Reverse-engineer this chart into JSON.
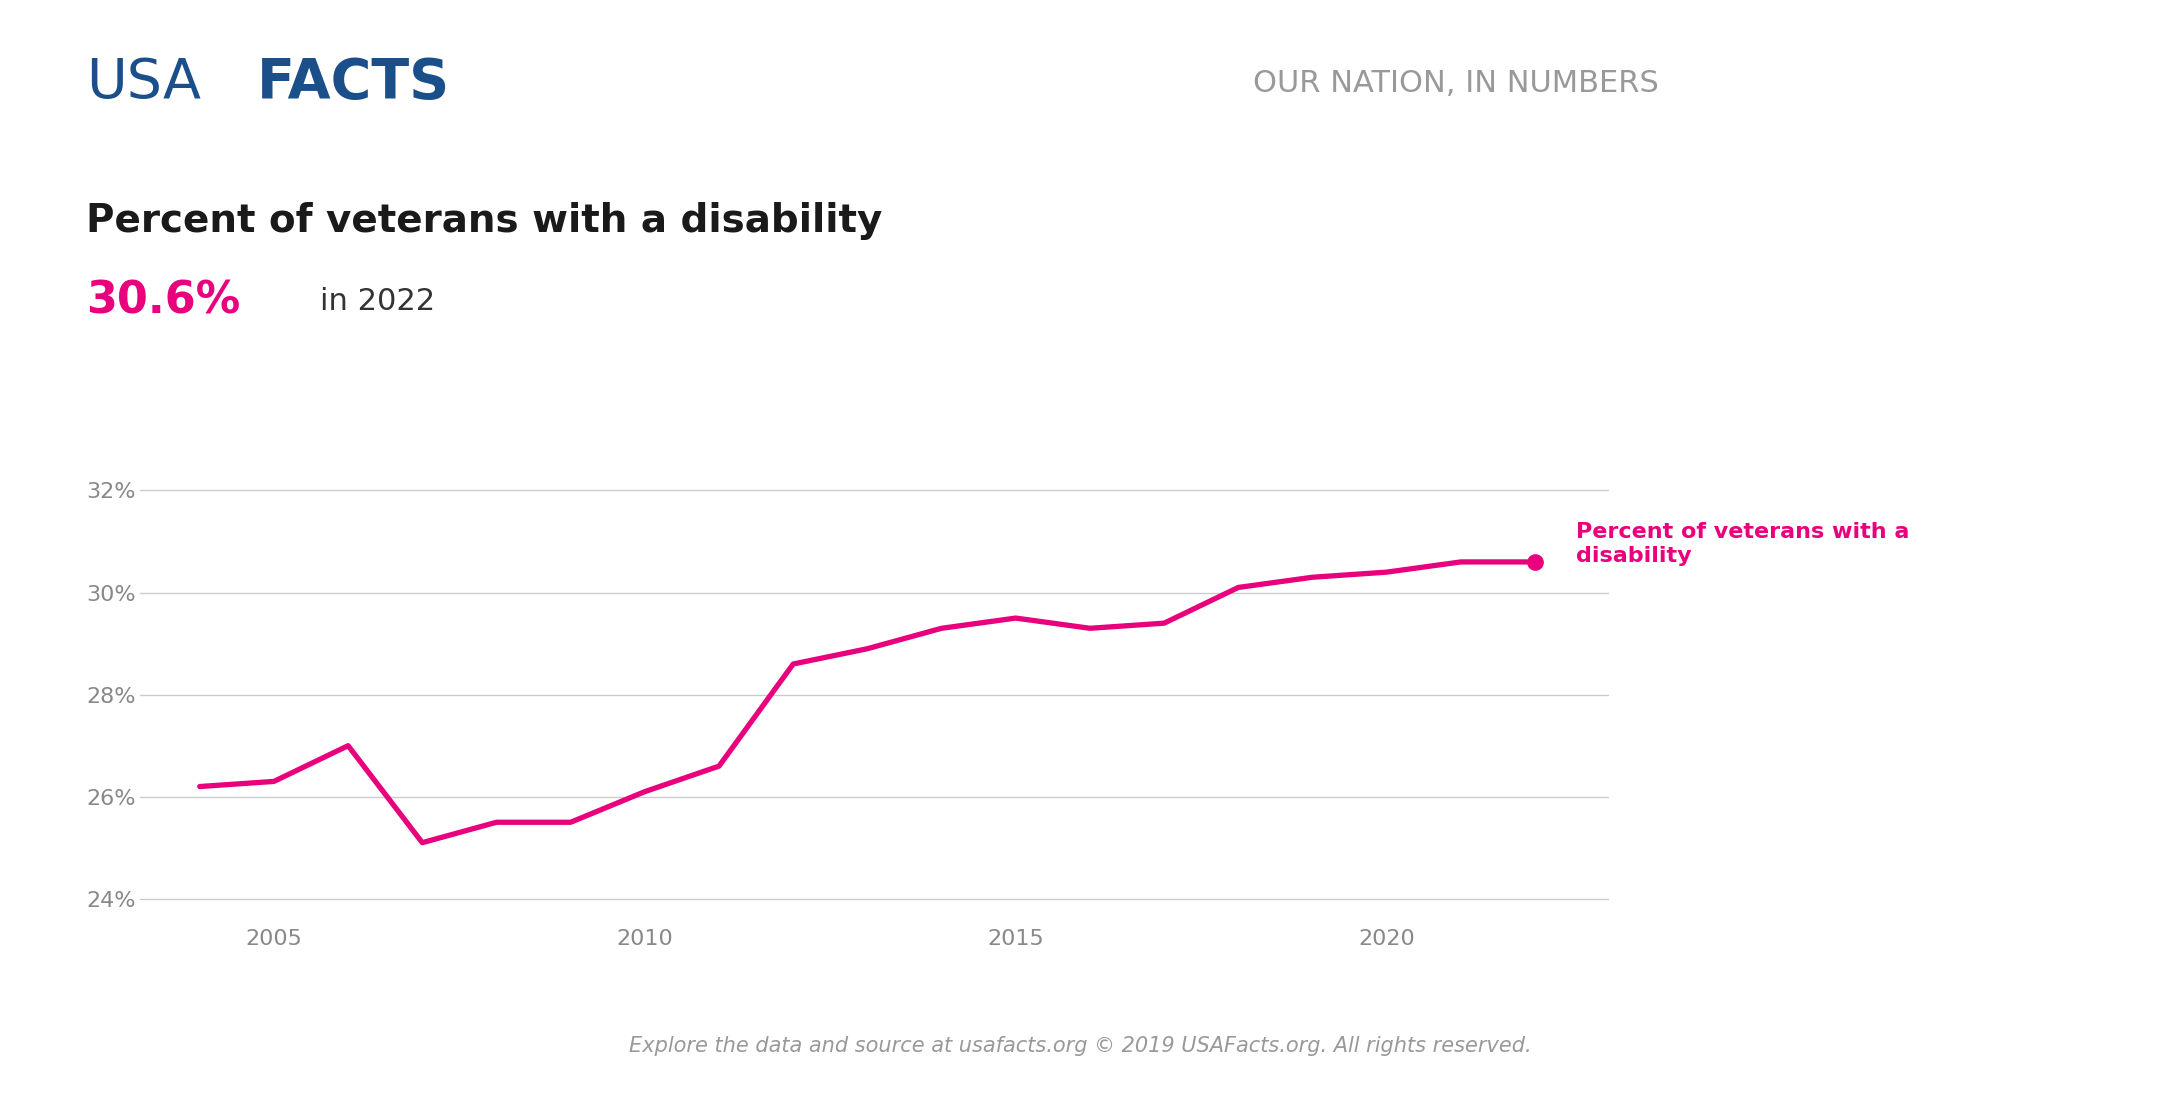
{
  "title": "Percent of veterans with a disability",
  "subtitle_value": "30.6%",
  "subtitle_year": "in 2022",
  "usa_text": "USA",
  "facts_text": "FACTS",
  "nation_label": "OUR NATION, IN NUMBERS",
  "footer": "Explore the data and source at usafacts.org © 2019 USAFacts.org. All rights reserved.",
  "line_color": "#E8007C",
  "line_label": "Percent of veterans with a\ndisability",
  "years": [
    2004,
    2005,
    2006,
    2007,
    2008,
    2009,
    2010,
    2011,
    2012,
    2013,
    2014,
    2015,
    2016,
    2017,
    2018,
    2019,
    2020,
    2021,
    2022
  ],
  "values": [
    26.2,
    26.3,
    27.0,
    25.1,
    25.5,
    25.5,
    26.1,
    26.6,
    28.6,
    28.9,
    29.3,
    29.5,
    29.3,
    29.4,
    30.1,
    30.3,
    30.4,
    30.6,
    30.6
  ],
  "ylim": [
    23.5,
    32.5
  ],
  "yticks": [
    24,
    26,
    28,
    30,
    32
  ],
  "ytick_labels": [
    "24%",
    "26%",
    "28%",
    "30%",
    "32%"
  ],
  "xticks": [
    2005,
    2010,
    2015,
    2020
  ],
  "xlim": [
    2003.2,
    2023.0
  ],
  "background_color": "#ffffff",
  "grid_color": "#cccccc",
  "axis_color": "#888888",
  "title_color": "#1a1a1a",
  "subtitle_value_color": "#E8007C",
  "subtitle_year_color": "#333333",
  "nation_color": "#999999",
  "usa_color": "#1a4f8a",
  "facts_color": "#1a4f8a",
  "separator_color": "#cccccc"
}
